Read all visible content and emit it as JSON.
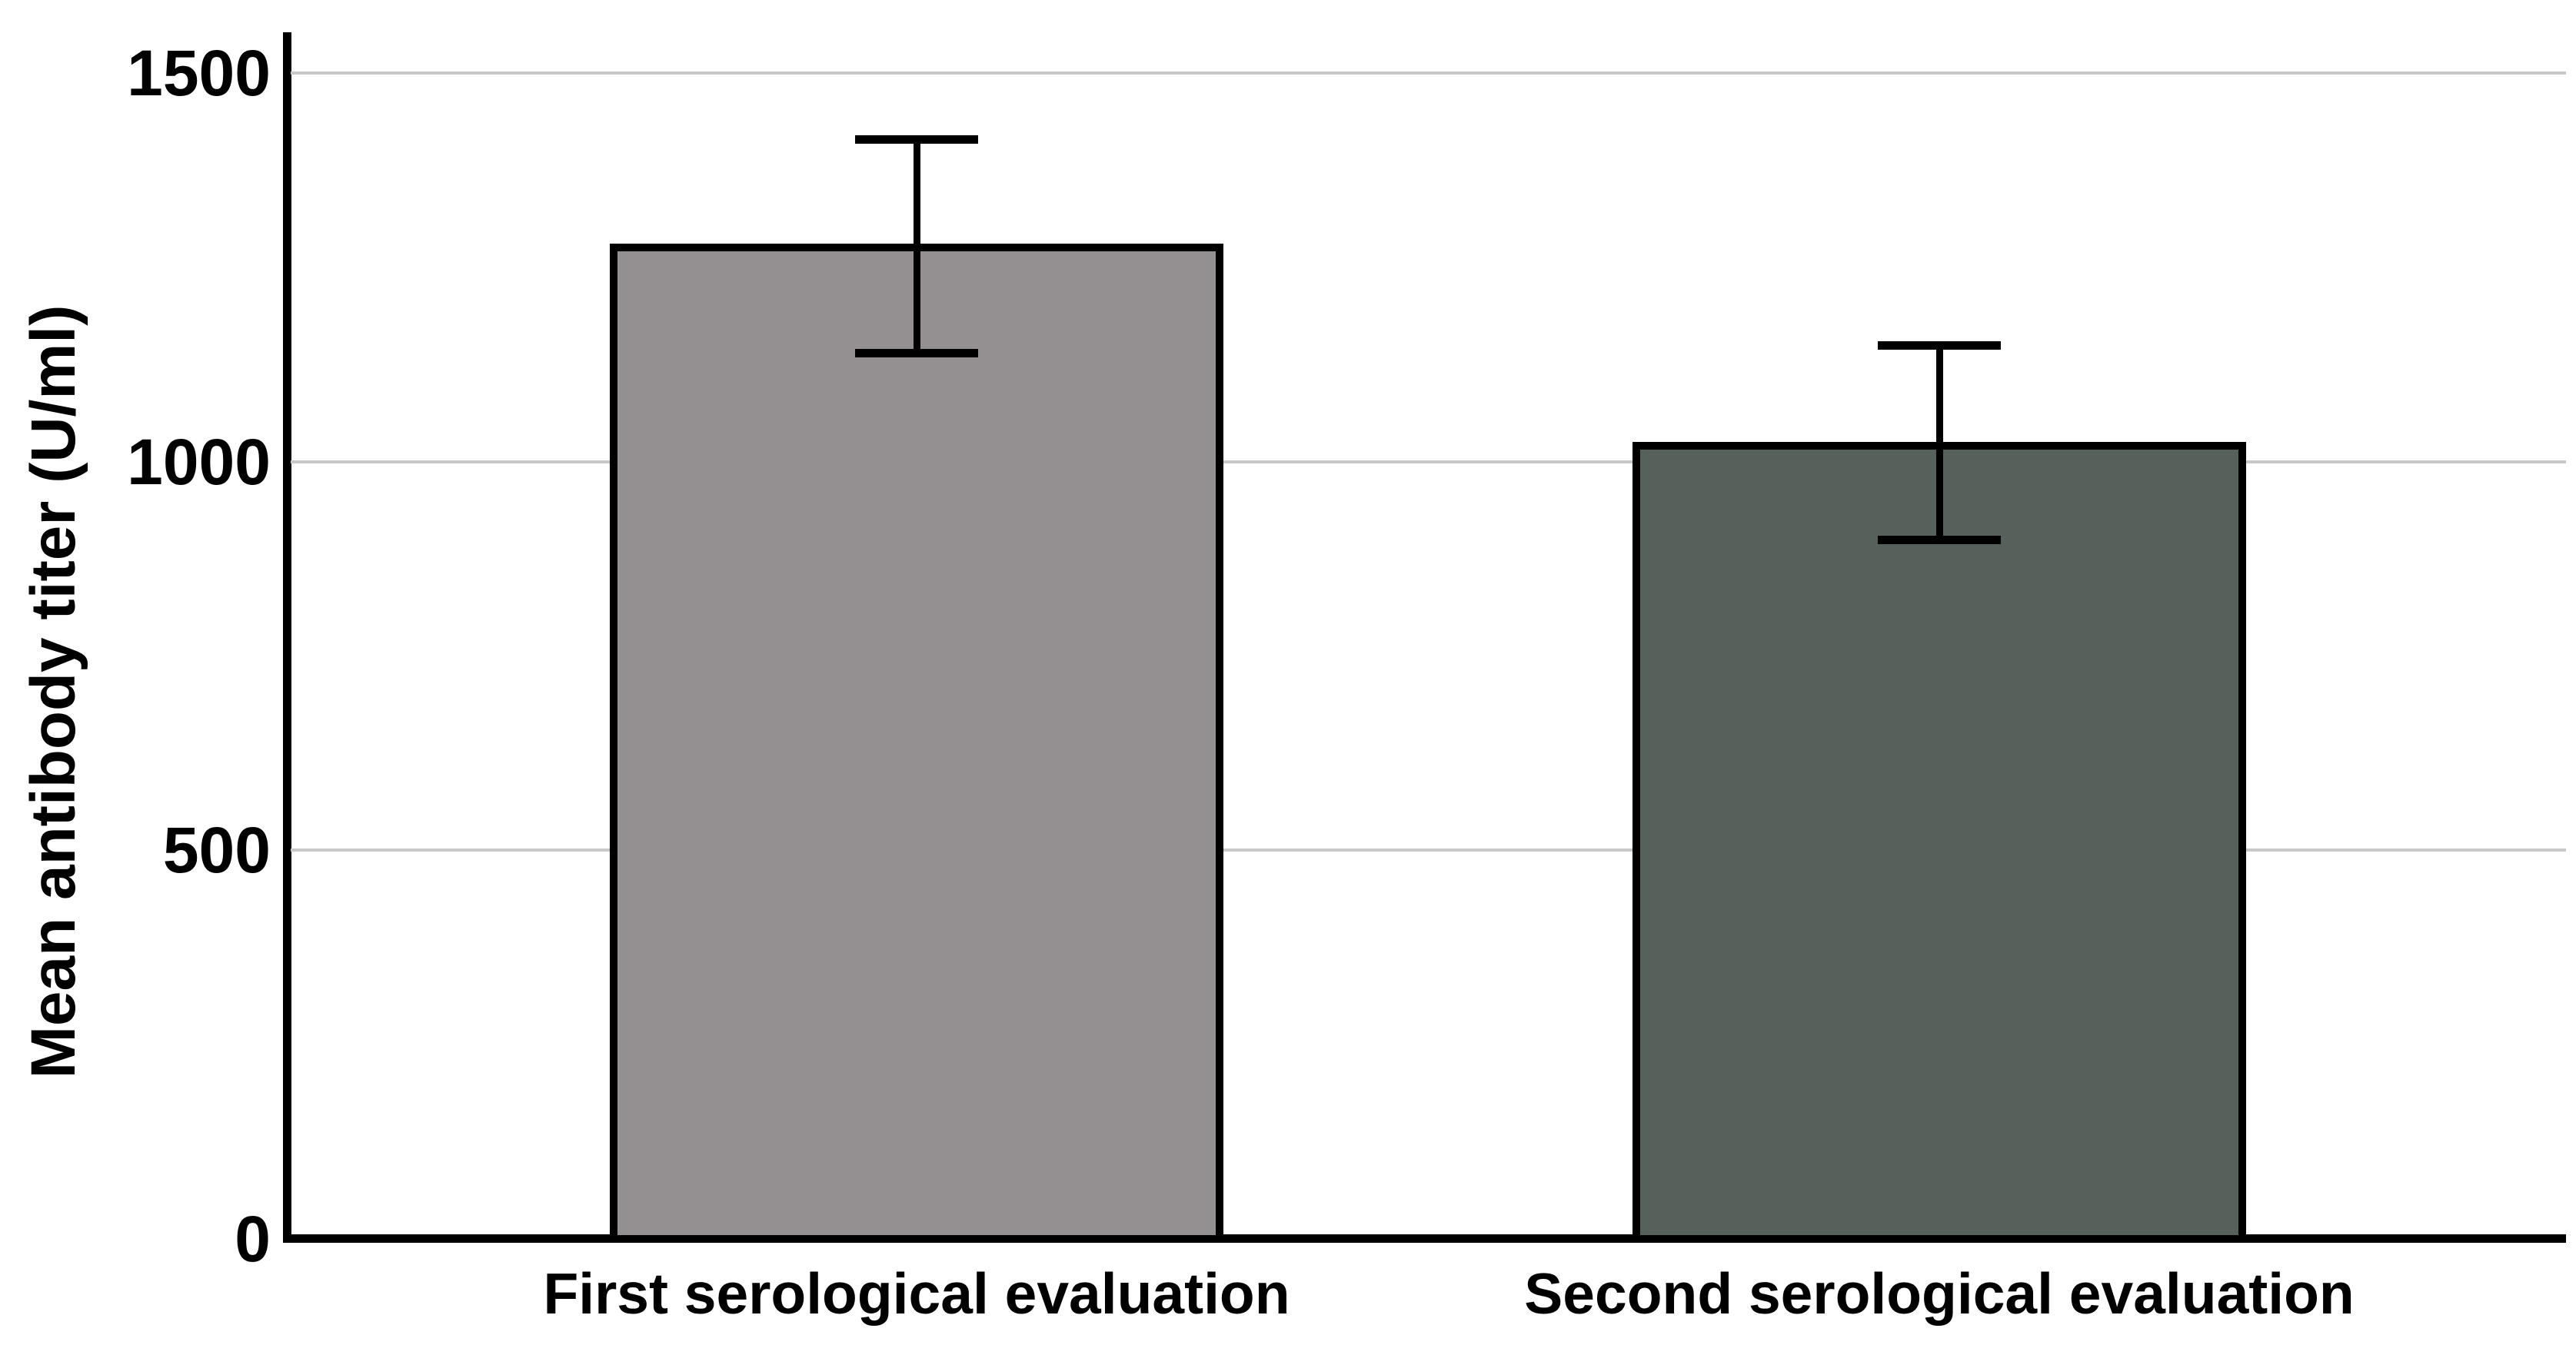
{
  "chart_data": {
    "type": "bar",
    "title": "",
    "categories": [
      "First serological evaluation",
      "Second serological evaluation"
    ],
    "values": [
      1280,
      1025
    ],
    "error_bars": [
      {
        "low": 1140,
        "high": 1415
      },
      {
        "low": 900,
        "high": 1150
      }
    ],
    "bar_colors": [
      "#949091",
      "#57615b"
    ],
    "ylabel": "Mean antibody titer (U/ml)",
    "xlabel": "",
    "ylim": [
      0,
      1550
    ],
    "yticks": [
      0,
      500,
      1000,
      1500
    ],
    "grid": "horizontal-light-gray",
    "legend": "none",
    "axis_color": "#000000",
    "gridline_color": "#c8c8c8"
  }
}
